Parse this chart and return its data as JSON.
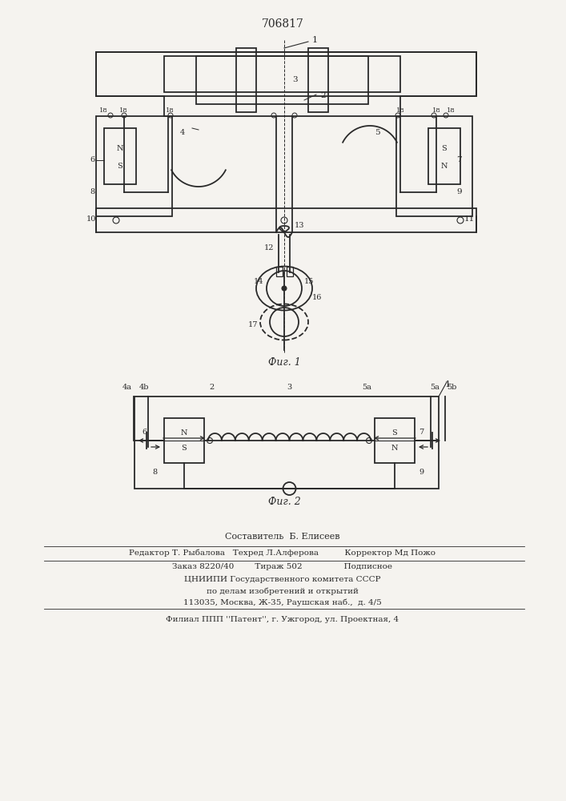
{
  "patent_number": "706817",
  "fig1_caption": "Фиг. 1",
  "fig2_caption": "Фиг. 2",
  "footer_line1": "Составитель  Б. Елисеев",
  "footer_line2": "Редактор Т. Рыбалова   Техред Л.Алферова          Корректор Мд Пожо",
  "footer_line3": "Заказ 8220/40        Тираж 502                Подписное",
  "footer_line4": "ЦНИИПИ Государственного комитета СССР",
  "footer_line5": "по делам изобретений и открытий",
  "footer_line6": "113035, Москва, Ж-35, Раушская наб.,  д. 4/5",
  "footer_line7": "Филиал ППП ''Патент'', г. Ужгород, ул. Проектная, 4",
  "bg_color": "#f5f3ef",
  "line_color": "#2a2a2a"
}
